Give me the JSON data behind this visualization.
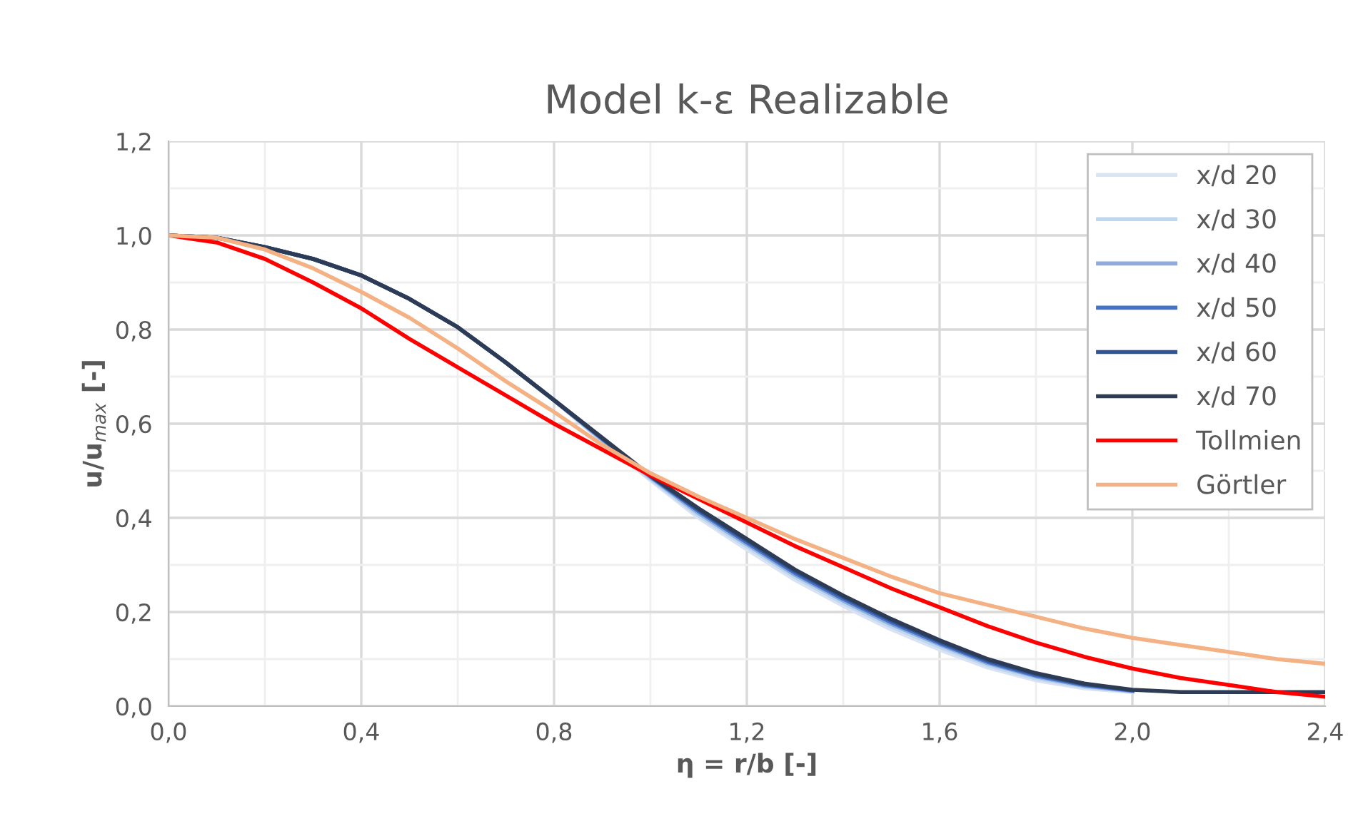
{
  "chart_data": {
    "type": "line",
    "title": "Model k-ε Realizable",
    "xlabel": "η = r/b [-]",
    "ylabel": "u/u$_{max}$ [-]",
    "x": [
      0,
      0.1,
      0.2,
      0.3,
      0.4,
      0.5,
      0.6,
      0.7,
      0.8,
      0.9,
      1.0,
      1.1,
      1.2,
      1.3,
      1.4,
      1.5,
      1.6,
      1.7,
      1.8,
      1.9,
      2.0,
      2.1,
      2.2,
      2.3,
      2.4
    ],
    "series": [
      {
        "name": "x/d 20",
        "color": "#dae3f3",
        "values": [
          1.0,
          0.995,
          0.975,
          0.95,
          0.915,
          0.865,
          0.805,
          0.73,
          0.65,
          0.562,
          0.48,
          0.4,
          0.333,
          0.268,
          0.213,
          0.163,
          0.12,
          0.082,
          0.055,
          0.038,
          0.03,
          null,
          null,
          null,
          null
        ]
      },
      {
        "name": "x/d 30",
        "color": "#bdd7ee",
        "values": [
          1.0,
          0.995,
          0.975,
          0.95,
          0.915,
          0.865,
          0.805,
          0.73,
          0.65,
          0.564,
          0.483,
          0.405,
          0.339,
          0.274,
          0.219,
          0.169,
          0.126,
          0.087,
          0.059,
          0.041,
          0.031,
          null,
          null,
          null,
          null
        ]
      },
      {
        "name": "x/d 40",
        "color": "#8faadc",
        "values": [
          1.0,
          0.995,
          0.975,
          0.95,
          0.915,
          0.865,
          0.805,
          0.73,
          0.65,
          0.566,
          0.486,
          0.41,
          0.344,
          0.279,
          0.224,
          0.174,
          0.131,
          0.091,
          0.063,
          0.043,
          0.032,
          null,
          null,
          null,
          null
        ]
      },
      {
        "name": "x/d 50",
        "color": "#4472c4",
        "values": [
          1.0,
          0.995,
          0.975,
          0.95,
          0.915,
          0.865,
          0.805,
          0.73,
          0.65,
          0.568,
          0.488,
          0.414,
          0.348,
          0.283,
          0.228,
          0.178,
          0.134,
          0.094,
          0.065,
          0.045,
          0.033,
          null,
          null,
          null,
          null
        ]
      },
      {
        "name": "x/d 60",
        "color": "#2f5597",
        "values": [
          1.0,
          0.995,
          0.975,
          0.95,
          0.915,
          0.865,
          0.805,
          0.73,
          0.65,
          0.569,
          0.489,
          0.417,
          0.352,
          0.287,
          0.232,
          0.182,
          0.137,
          0.097,
          0.068,
          0.047,
          0.034,
          null,
          null,
          null,
          null
        ]
      },
      {
        "name": "x/d 70",
        "color": "#2e3b55",
        "values": [
          1.0,
          0.995,
          0.975,
          0.95,
          0.915,
          0.865,
          0.805,
          0.73,
          0.65,
          0.57,
          0.49,
          0.42,
          0.355,
          0.29,
          0.235,
          0.185,
          0.14,
          0.1,
          0.07,
          0.048,
          0.035,
          0.03,
          0.03,
          0.03,
          0.03
        ]
      },
      {
        "name": "Tollmien",
        "color": "#ff0000",
        "values": [
          1.0,
          0.985,
          0.95,
          0.9,
          0.845,
          0.78,
          0.72,
          0.66,
          0.6,
          0.545,
          0.49,
          0.44,
          0.39,
          0.34,
          0.295,
          0.25,
          0.21,
          0.17,
          0.135,
          0.105,
          0.08,
          0.06,
          0.045,
          0.03,
          0.02
        ]
      },
      {
        "name": "Görtler",
        "color": "#f4b183",
        "values": [
          1.0,
          0.995,
          0.97,
          0.93,
          0.88,
          0.825,
          0.76,
          0.69,
          0.625,
          0.555,
          0.495,
          0.445,
          0.4,
          0.355,
          0.315,
          0.275,
          0.24,
          0.215,
          0.19,
          0.165,
          0.145,
          0.13,
          0.115,
          0.1,
          0.09
        ]
      }
    ],
    "xlim": [
      0,
      2.4
    ],
    "xticks": [
      {
        "value": 0,
        "label": "0,0"
      },
      {
        "value": 0.4,
        "label": "0,4"
      },
      {
        "value": 0.8,
        "label": "0,8"
      },
      {
        "value": 1.2,
        "label": "1,2"
      },
      {
        "value": 1.6,
        "label": "1,6"
      },
      {
        "value": 2.0,
        "label": "2,0"
      },
      {
        "value": 2.4,
        "label": "2,4"
      }
    ],
    "ylim": [
      0,
      1.2
    ],
    "yticks": [
      {
        "value": 0,
        "label": "0,0"
      },
      {
        "value": 0.2,
        "label": "0,2"
      },
      {
        "value": 0.4,
        "label": "0,4"
      },
      {
        "value": 0.6,
        "label": "0,6"
      },
      {
        "value": 0.8,
        "label": "0,8"
      },
      {
        "value": 1.0,
        "label": "1,0"
      },
      {
        "value": 1.2,
        "label": "1,2"
      }
    ],
    "grid": true,
    "legend": "top right",
    "marker": "none",
    "line_style": "solid"
  }
}
